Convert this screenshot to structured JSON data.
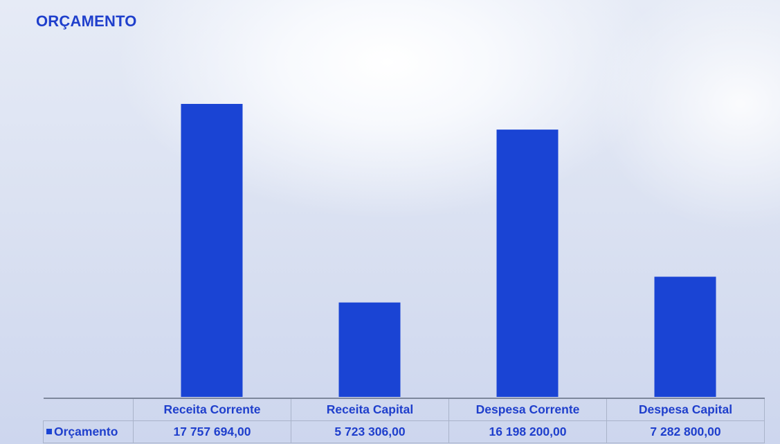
{
  "chart_data": {
    "type": "bar",
    "title": "ORÇAMENTO",
    "categories": [
      "Receita Corrente",
      "Receita Capital",
      "Despesa Corrente",
      "Despesa Capital"
    ],
    "series": [
      {
        "name": "Orçamento",
        "values": [
          17757694.0,
          5723306.0,
          16198200.0,
          7282800.0
        ],
        "labels": [
          "17 757 694,00",
          "5 723 306,00",
          "16 198 200,00",
          "7 282 800,00"
        ],
        "color": "#1a44d4"
      }
    ],
    "ylim": [
      0,
      17757694.0
    ],
    "grid": false,
    "legend": "data-table"
  }
}
